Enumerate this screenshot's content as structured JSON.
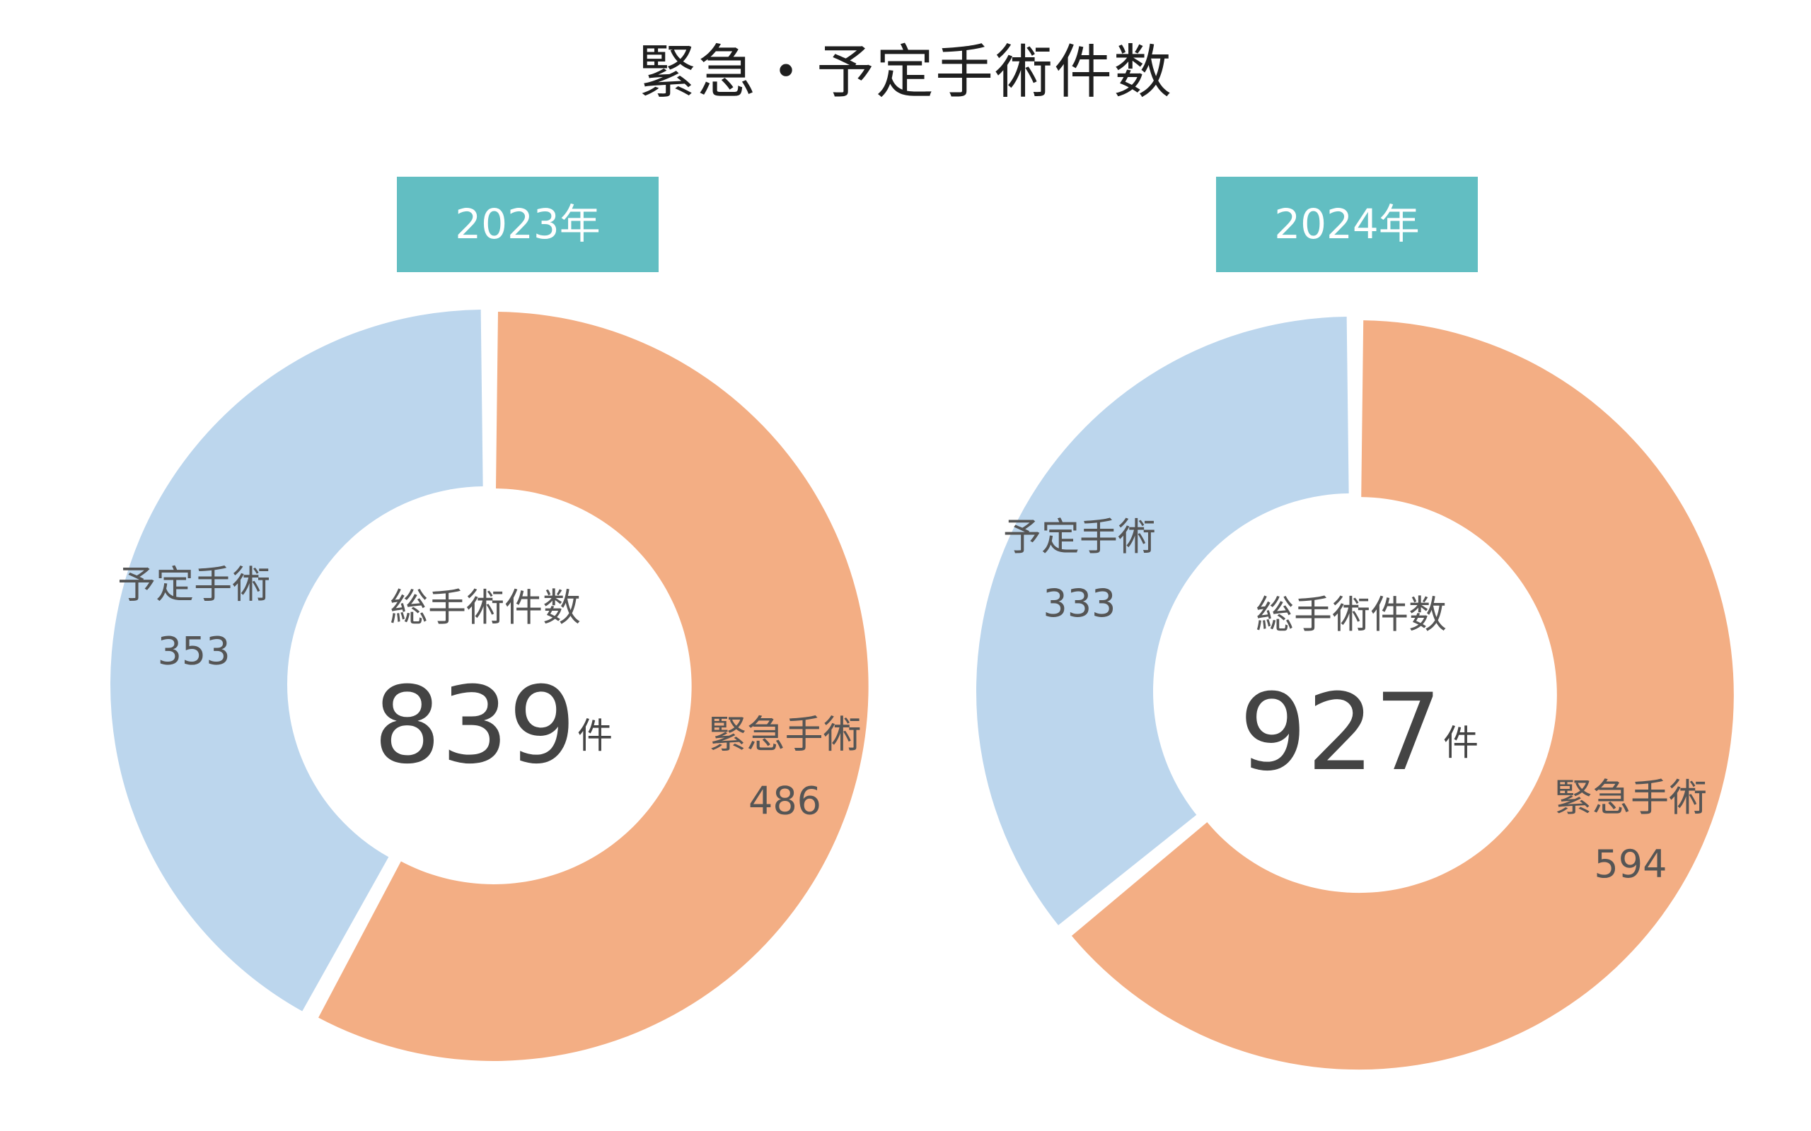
{
  "title": "緊急・予定手術件数",
  "colors": {
    "emergency": "#f3ae84",
    "scheduled": "#bcd6ed",
    "badge": "#62bec2",
    "label_text": "#555555",
    "total_text": "#444444"
  },
  "chart_data": [
    {
      "type": "pie",
      "variant": "donut",
      "year_label": "2023年",
      "center_label": "総手術件数",
      "total": 839,
      "total_unit": "件",
      "slices": [
        {
          "name": "緊急手術",
          "value": 486
        },
        {
          "name": "予定手術",
          "value": 353
        }
      ]
    },
    {
      "type": "pie",
      "variant": "donut",
      "year_label": "2024年",
      "center_label": "総手術件数",
      "total": 927,
      "total_unit": "件",
      "slices": [
        {
          "name": "緊急手術",
          "value": 594
        },
        {
          "name": "予定手術",
          "value": 333
        }
      ]
    }
  ]
}
